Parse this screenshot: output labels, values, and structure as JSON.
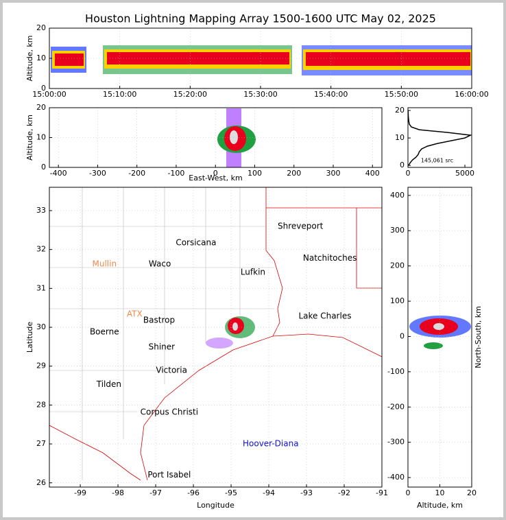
{
  "chart_data": [
    {
      "type": "density",
      "title": "Houston Lightning Mapping Array 1500-1600 UTC May 02, 2025",
      "ylabel": "Altitude, km",
      "xlim": [
        0,
        60
      ],
      "xticks": [
        {
          "value": 0,
          "label": "15:00:00"
        },
        {
          "value": 10,
          "label": "15:10:00"
        },
        {
          "value": 20,
          "label": "15:20:00"
        },
        {
          "value": 30,
          "label": "15:30:00"
        },
        {
          "value": 40,
          "label": "15:40:00"
        },
        {
          "value": 50,
          "label": "15:50:00"
        },
        {
          "value": 60,
          "label": "16:00:00"
        }
      ],
      "ylim": [
        0,
        20
      ],
      "yticks": [
        0,
        10,
        20
      ],
      "grid": true
    },
    {
      "type": "density",
      "xlabel": "East-West, km",
      "ylabel": "Altitude, km",
      "xlim": [
        -423,
        424
      ],
      "xticks": [
        -400,
        -300,
        -200,
        -100,
        0,
        100,
        200,
        300,
        400
      ],
      "ylim": [
        0,
        20
      ],
      "yticks": [
        0,
        10,
        20
      ],
      "grid": true
    },
    {
      "type": "line",
      "annotation": "145,061 src",
      "color": "#000000",
      "y": [
        0,
        1,
        2,
        3,
        4,
        5,
        6,
        7,
        8,
        9,
        10,
        11,
        12,
        13,
        14,
        15,
        16,
        17,
        18,
        19,
        20
      ],
      "values": [
        50,
        200,
        400,
        700,
        900,
        1000,
        1200,
        1700,
        2600,
        3800,
        5000,
        5500,
        3500,
        1000,
        300,
        120,
        80,
        50,
        30,
        20,
        10
      ],
      "xlim": [
        0,
        5600
      ],
      "xticks": [
        0,
        5000
      ],
      "ylim": [
        -0.7,
        21
      ],
      "yticks": [
        0,
        10,
        20
      ],
      "grid": false
    },
    {
      "type": "map",
      "xlabel": "Longitude",
      "ylabel": "Latitude",
      "xlim": [
        -99.82,
        -91
      ],
      "xticks": [
        -99,
        -98,
        -97,
        -96,
        -95,
        -94,
        -93,
        -92,
        -91
      ],
      "ylim": [
        25.89,
        33.6
      ],
      "yticks": [
        26,
        27,
        28,
        29,
        30,
        31,
        32,
        33
      ],
      "grid": true,
      "points": [
        {
          "name": "Shreveport",
          "color": "#000000",
          "lon": -93.16,
          "lat": 32.59
        },
        {
          "name": "Corsicana",
          "color": "#000000",
          "lon": -95.93,
          "lat": 32.17
        },
        {
          "name": "Mullin",
          "color": "#f08a4b",
          "lon": -98.36,
          "lat": 31.62
        },
        {
          "name": "Waco",
          "color": "#000000",
          "lon": -96.89,
          "lat": 31.62
        },
        {
          "name": "Natchitoches",
          "color": "#000000",
          "lon": -92.38,
          "lat": 31.77
        },
        {
          "name": "Lufkin",
          "color": "#000000",
          "lon": -94.42,
          "lat": 31.41
        },
        {
          "name": "ATX",
          "color": "#f08a4b",
          "lon": -97.56,
          "lat": 30.34
        },
        {
          "name": "Bastrop",
          "color": "#000000",
          "lon": -96.91,
          "lat": 30.18
        },
        {
          "name": "Lake Charles",
          "color": "#000000",
          "lon": -92.51,
          "lat": 30.28
        },
        {
          "name": "Boerne",
          "color": "#000000",
          "lon": -98.36,
          "lat": 29.88
        },
        {
          "name": "Shiner",
          "color": "#000000",
          "lon": -96.84,
          "lat": 29.49
        },
        {
          "name": "Victoria",
          "color": "#000000",
          "lon": -96.58,
          "lat": 28.89
        },
        {
          "name": "Tilden",
          "color": "#000000",
          "lon": -98.24,
          "lat": 28.53
        },
        {
          "name": "Corpus Christi",
          "color": "#000000",
          "lon": -96.64,
          "lat": 27.81
        },
        {
          "name": "Hoover-Diana",
          "color": "#1010e0",
          "lon": -93.95,
          "lat": 27.0
        },
        {
          "name": "Port Isabel",
          "color": "#000000",
          "lon": -96.64,
          "lat": 26.2
        }
      ]
    },
    {
      "type": "density",
      "xlabel": "Altitude, km",
      "ylabel": "North-South, km",
      "ylabel_side": "right",
      "xlim": [
        0,
        20
      ],
      "xticks": [
        0,
        10,
        20
      ],
      "ylim": [
        -427,
        423
      ],
      "yticks": [
        -400,
        -300,
        -200,
        -100,
        0,
        100,
        200,
        300,
        400
      ],
      "grid": true
    }
  ]
}
